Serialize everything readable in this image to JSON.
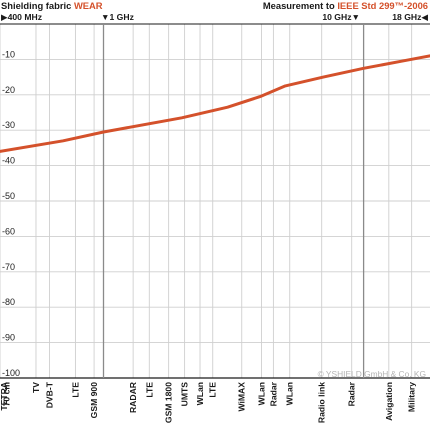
{
  "header": {
    "title_prefix": "Shielding fabric ",
    "title_product": "WEAR",
    "standard_prefix": "Measurement to ",
    "standard_name": "IEEE Std 299™-2006"
  },
  "copyright": "© YSHIELD GmbH & Co. KG",
  "colors": {
    "accent": "#d4512b",
    "curve": "#d4512b",
    "grid": "#cfcfcf",
    "axis": "#1a1a1a",
    "marker": "#8a8a8a"
  },
  "chart_data": {
    "type": "line",
    "x_scale": "log",
    "x_unit": "GHz",
    "xlim": [
      0.4,
      18
    ],
    "ylim": [
      -100,
      0
    ],
    "y_ticks": [
      -10,
      -20,
      -30,
      -40,
      -50,
      -60,
      -70,
      -80,
      -90,
      -100
    ],
    "grid": true,
    "series": [
      {
        "x": [
          0.4,
          0.7,
          1.0,
          2.0,
          3.0,
          4.0,
          5.0,
          7.0,
          10.0,
          14.0,
          18.0
        ],
        "values": [
          -36,
          -33,
          -30.5,
          -26.5,
          -23.5,
          -20.5,
          -17.5,
          -15,
          -12.5,
          -10.5,
          -9
        ]
      }
    ],
    "frequency_labels": {
      "start": "▶400 MHz",
      "mid": "▼1 GHz",
      "high": "10 GHz▼",
      "end": "18 GHz◀"
    },
    "frequency_markers": [
      1,
      10
    ],
    "applications": [
      {
        "label": "TETRA\n70 cm",
        "x": 0.4
      },
      {
        "label": "TV",
        "x": 0.55
      },
      {
        "label": "DVB-T",
        "x": 0.62
      },
      {
        "label": "LTE",
        "x": 0.78
      },
      {
        "label": "GSM 900",
        "x": 0.92
      },
      {
        "label": "RADAR",
        "x": 1.3
      },
      {
        "label": "LTE",
        "x": 1.5
      },
      {
        "label": "GSM 1800",
        "x": 1.78
      },
      {
        "label": "UMTS",
        "x": 2.05
      },
      {
        "label": "WLan",
        "x": 2.35
      },
      {
        "label": "LTE",
        "x": 2.63
      },
      {
        "label": "WiMAX",
        "x": 3.4
      },
      {
        "label": "WLan",
        "x": 4.05
      },
      {
        "label": "Radar",
        "x": 4.5
      },
      {
        "label": "WLan",
        "x": 5.2
      },
      {
        "label": "Radio link",
        "x": 6.9
      },
      {
        "label": "Radar",
        "x": 9.0
      },
      {
        "label": "Avigation",
        "x": 12.5
      },
      {
        "label": "Military",
        "x": 15.3
      }
    ]
  }
}
